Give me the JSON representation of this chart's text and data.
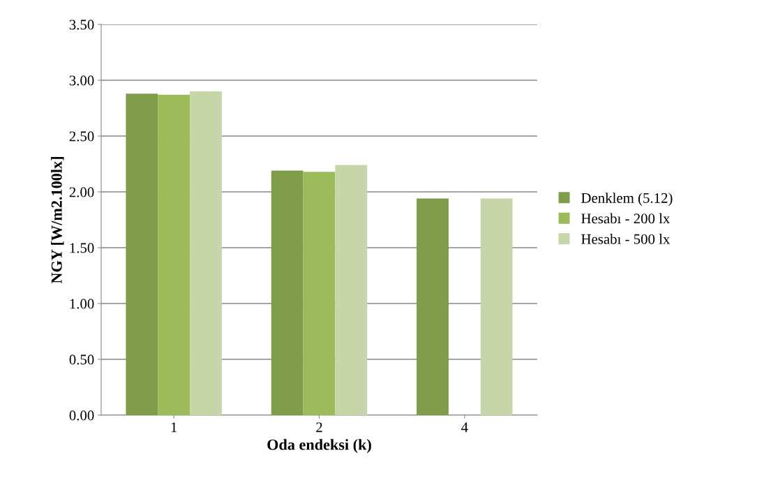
{
  "chart_data": {
    "type": "bar",
    "xlabel": "Oda endeksi (k)",
    "ylabel": "NGY [W/m2.100lx]",
    "categories": [
      "1",
      "2",
      "4"
    ],
    "series": [
      {
        "name": "Denklem (5.12)",
        "color": "#7f9c4a",
        "values": [
          2.88,
          2.19,
          1.94
        ]
      },
      {
        "name": "Hesabı - 200 lx",
        "color": "#9bbb59",
        "values": [
          2.87,
          2.18,
          null
        ]
      },
      {
        "name": "Hesabı - 500 lx",
        "color": "#c6d6a8",
        "values": [
          2.9,
          2.24,
          1.94
        ]
      }
    ],
    "ylim": [
      0,
      3.5
    ],
    "yticks": [
      {
        "value": 0,
        "label": "0.00"
      },
      {
        "value": 0.5,
        "label": "0.50"
      },
      {
        "value": 1,
        "label": "1.00"
      },
      {
        "value": 1.5,
        "label": "1.50"
      },
      {
        "value": 2,
        "label": "2.00"
      },
      {
        "value": 2.5,
        "label": "2.50"
      },
      {
        "value": 3,
        "label": "3.00"
      },
      {
        "value": 3.5,
        "label": "3.50"
      }
    ],
    "grid": "y",
    "legend": "right"
  }
}
